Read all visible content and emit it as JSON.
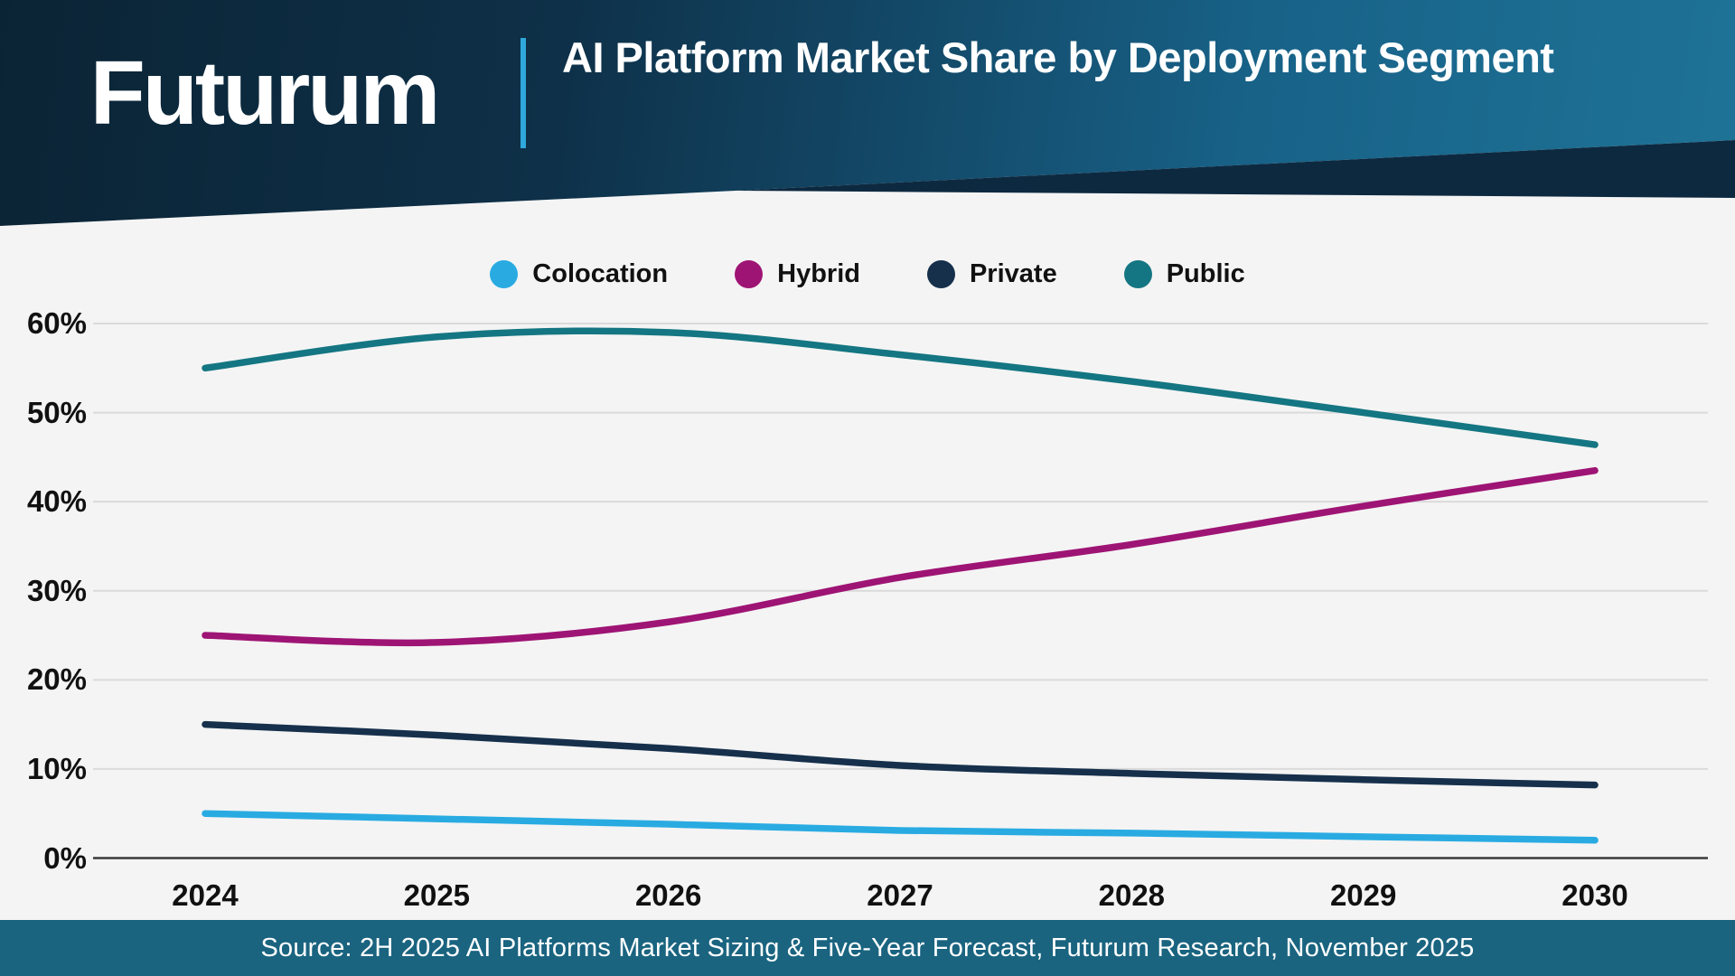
{
  "header": {
    "logo": "Futurum",
    "title": "AI Platform Market Share by Deployment Segment"
  },
  "footer": {
    "source": "Source: 2H 2025 AI Platforms Market Sizing & Five-Year Forecast, Futurum Research, November 2025"
  },
  "colors": {
    "colocation": "#29ABE2",
    "hybrid": "#9E1474",
    "private": "#16304C",
    "public": "#147682",
    "header_left": "#0B2435",
    "header_right": "#1E7396",
    "header_wedge": "#0D2940",
    "divider": "#2FA8DC",
    "footer_bg": "#1A6480",
    "page_bg": "#F4F4F4",
    "gridline": "#DADADA",
    "axis_line": "#3A3A3A",
    "tick_text": "#111111"
  },
  "chart_data": {
    "type": "line",
    "title": "AI Platform Market Share by Deployment Segment",
    "x": [
      2024,
      2025,
      2026,
      2027,
      2028,
      2029,
      2030
    ],
    "series": [
      {
        "name": "Colocation",
        "color_key": "colocation",
        "values": [
          5,
          4.4,
          3.8,
          3.1,
          2.8,
          2.4,
          2
        ]
      },
      {
        "name": "Hybrid",
        "color_key": "hybrid",
        "values": [
          25,
          24.2,
          26.5,
          31.5,
          35.2,
          39.5,
          43.5
        ]
      },
      {
        "name": "Private",
        "color_key": "private",
        "values": [
          15,
          13.8,
          12.3,
          10.4,
          9.5,
          8.8,
          8.2
        ]
      },
      {
        "name": "Public",
        "color_key": "public",
        "values": [
          55,
          58.5,
          59,
          56.5,
          53.5,
          50,
          46.4
        ]
      }
    ],
    "ylim": [
      0,
      60
    ],
    "yticks": [
      0,
      10,
      20,
      30,
      40,
      50,
      60
    ],
    "ytick_suffix": "%",
    "grid": true,
    "legend_position": "top"
  }
}
